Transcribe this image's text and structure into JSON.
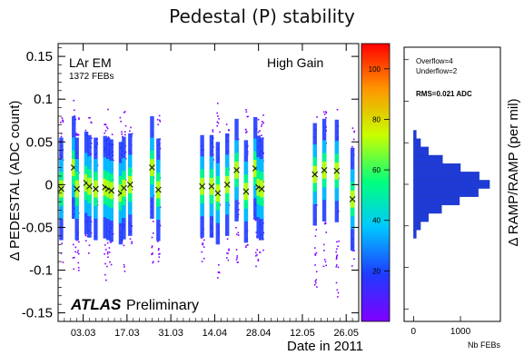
{
  "title": "Pedestal (P) stability",
  "chart_data": [
    {
      "type": "scatter",
      "title": "Pedestal (P) stability",
      "xlabel": "Date in 2011",
      "ylabel": "Δ PEDESTAL (ADC count)",
      "x_tick_labels": [
        "03.03",
        "17.03",
        "31.03",
        "14.04",
        "28.04",
        "12.05",
        "26.05"
      ],
      "x_tick_values": [
        "2011-03-03",
        "2011-03-17",
        "2011-03-31",
        "2011-04-14",
        "2011-04-28",
        "2011-05-12",
        "2011-05-26"
      ],
      "xlim": [
        "2011-02-23",
        "2011-05-30"
      ],
      "ylim": [
        -0.16,
        0.165
      ],
      "y_ticks": [
        0.15,
        0.1,
        0.05,
        0,
        -0.05,
        -0.1,
        -0.15
      ],
      "y_tick_labels": [
        "0.15",
        "0.1",
        "0.05",
        "0",
        "-0.05",
        "-0.1",
        "-0.15"
      ],
      "annotations": {
        "detector": "LAr EM",
        "febs": "1372 FEBs",
        "gain": "High Gain",
        "logo": "ATLAS",
        "status": "Preliminary"
      },
      "colorbar": {
        "ticks": [
          20,
          40,
          60,
          80,
          100
        ],
        "range": [
          0,
          110
        ],
        "colors": [
          "#7f00ff",
          "#1f3bff",
          "#00c8ff",
          "#00ff7f",
          "#c8ff00",
          "#ff9400",
          "#ff0000"
        ]
      },
      "series": [
        {
          "marker": "x",
          "x": [
            "2011-02-24",
            "2011-02-28",
            "2011-03-01",
            "2011-03-04",
            "2011-03-05",
            "2011-03-07",
            "2011-03-10",
            "2011-03-11",
            "2011-03-12",
            "2011-03-15",
            "2011-03-16",
            "2011-03-18",
            "2011-03-25",
            "2011-03-27",
            "2011-04-10",
            "2011-04-13",
            "2011-04-15",
            "2011-04-18",
            "2011-04-21",
            "2011-04-24",
            "2011-04-27",
            "2011-04-28",
            "2011-04-29",
            "2011-05-16",
            "2011-05-19",
            "2011-05-23",
            "2011-05-28"
          ],
          "y": [
            -0.005,
            0.02,
            -0.005,
            0.002,
            -0.002,
            -0.005,
            -0.003,
            -0.005,
            -0.007,
            -0.01,
            -0.004,
            0.0,
            0.02,
            -0.006,
            -0.002,
            -0.002,
            -0.01,
            0.0,
            0.017,
            -0.008,
            0.019,
            -0.003,
            -0.005,
            0.012,
            0.017,
            0.016,
            -0.017
          ],
          "spread_low": [
            -0.09,
            -0.1,
            -0.1,
            -0.07,
            -0.08,
            -0.06,
            -0.12,
            -0.09,
            -0.1,
            -0.08,
            -0.11,
            -0.07,
            -0.1,
            -0.09,
            -0.09,
            -0.06,
            -0.11,
            -0.1,
            -0.09,
            -0.08,
            -0.1,
            -0.09,
            -0.08,
            -0.12,
            -0.11,
            -0.14,
            -0.1
          ],
          "spread_high": [
            0.09,
            0.1,
            0.08,
            0.07,
            0.08,
            0.06,
            0.08,
            0.09,
            0.07,
            0.08,
            0.09,
            0.07,
            0.06,
            0.09,
            0.05,
            0.07,
            0.1,
            0.08,
            0.06,
            0.09,
            0.07,
            0.08,
            0.09,
            0.08,
            0.09,
            0.14,
            0.07
          ]
        }
      ]
    },
    {
      "type": "bar",
      "orientation": "horizontal",
      "ylabel": "Δ RAMP/RAMP (per mil)",
      "xlabel": "Nb FEBs",
      "x_ticks": [
        0,
        1000
      ],
      "x_tick_labels": [
        "0",
        "1000"
      ],
      "xlim": [
        -200,
        1850
      ],
      "ylim": [
        -0.165,
        0.165
      ],
      "stats": {
        "overflow": "Overflow=4",
        "underflow": "Underflow=2",
        "rms": "RMS=0.021 ADC"
      },
      "bins_center": [
        -0.06,
        -0.05,
        -0.04,
        -0.03,
        -0.02,
        -0.01,
        0.0,
        0.01,
        0.02,
        0.03,
        0.04,
        0.05,
        0.06
      ],
      "values": [
        60,
        150,
        320,
        600,
        980,
        1380,
        1620,
        1400,
        1000,
        620,
        320,
        150,
        60
      ]
    }
  ]
}
